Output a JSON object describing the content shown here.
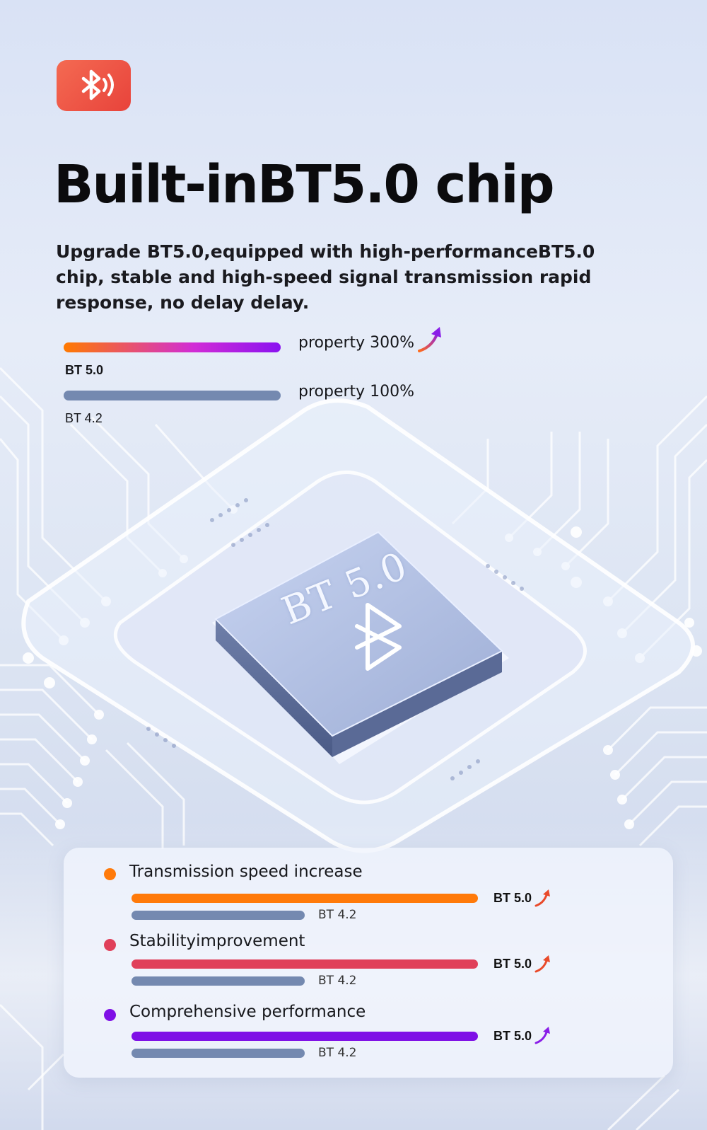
{
  "header": {
    "badge_icon": "bluetooth-signal-icon",
    "title": "Built-inBT5.0 chip",
    "subtitle": "Upgrade BT5.0,equipped with high-performanceBT5.0 chip, stable and high-speed signal transmission rapid response, no delay delay."
  },
  "comparison": [
    {
      "label": "BT 5.0",
      "property": "property 300%",
      "value_percent": 300,
      "colors": [
        "#ff7a00",
        "#d12cd6",
        "#8a12f0"
      ]
    },
    {
      "label": "BT 4.2",
      "property": "property 100%",
      "value_percent": 100,
      "colors": [
        "#7489b0"
      ]
    }
  ],
  "chip": {
    "label": "BT 5.0",
    "icon": "bluetooth-icon"
  },
  "features": [
    {
      "title": "Transmission speed increase",
      "color": "#ff7a0a",
      "new_label": "BT 5.0",
      "old_label": "BT 4.2",
      "arrow_color": "#e94a2a"
    },
    {
      "title": "Stabilityimprovement",
      "color": "#e0405a",
      "new_label": "BT 5.0",
      "old_label": "BT 4.2",
      "arrow_color": "#e94a2a"
    },
    {
      "title": "Comprehensive performance",
      "color": "#7f10e6",
      "new_label": "BT 5.0",
      "old_label": "BT 4.2",
      "arrow_color": "#8a1ee8"
    }
  ],
  "colors": {
    "old_bar": "#7489b0",
    "badge": "#ee5040"
  }
}
